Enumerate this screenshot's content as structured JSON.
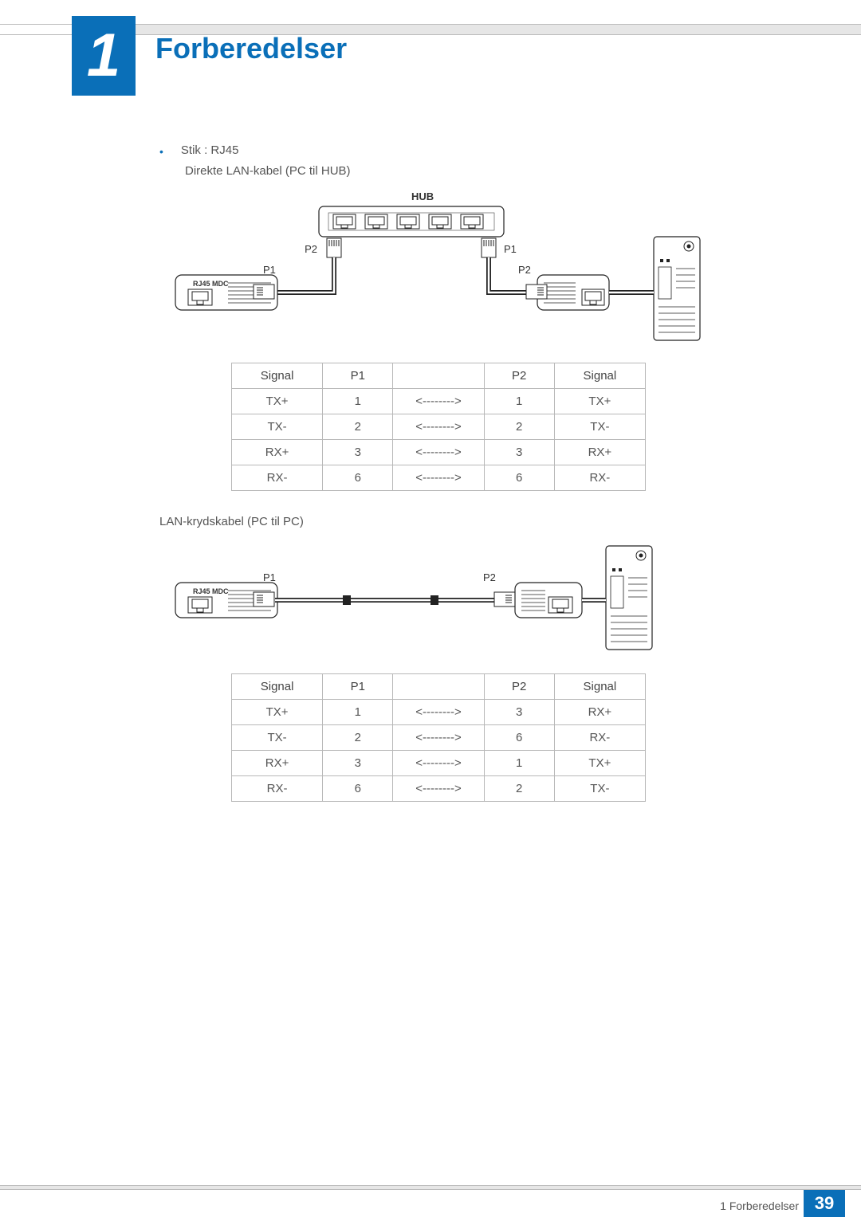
{
  "chapter": {
    "number": "1",
    "title": "Forberedelser"
  },
  "bullet_text": "Stik : RJ45",
  "diagram1_caption": "Direkte LAN-kabel (PC til HUB)",
  "diagram2_caption": "LAN-krydskabel (PC til PC)",
  "labels": {
    "hub": "HUB",
    "rj45": "RJ45 MDC",
    "p1": "P1",
    "p2": "P2"
  },
  "colors": {
    "brand": "#0a6fb8",
    "text": "#555",
    "border": "#b8b8b8",
    "bar_bg": "#e6e6e6",
    "bar_border": "#bcbcbc"
  },
  "table_headers": [
    "Signal",
    "P1",
    "",
    "P2",
    "Signal"
  ],
  "col_widths": [
    "22%",
    "17%",
    "22%",
    "17%",
    "22%"
  ],
  "arrow": "<-------->",
  "table1": {
    "type": "table",
    "rows": [
      [
        "TX+",
        "1",
        "<-------->",
        "1",
        "TX+"
      ],
      [
        "TX-",
        "2",
        "<-------->",
        "2",
        "TX-"
      ],
      [
        "RX+",
        "3",
        "<-------->",
        "3",
        "RX+"
      ],
      [
        "RX-",
        "6",
        "<-------->",
        "6",
        "RX-"
      ]
    ]
  },
  "table2": {
    "type": "table",
    "rows": [
      [
        "TX+",
        "1",
        "<-------->",
        "3",
        "RX+"
      ],
      [
        "TX-",
        "2",
        "<-------->",
        "6",
        "RX-"
      ],
      [
        "RX+",
        "3",
        "<-------->",
        "1",
        "TX+"
      ],
      [
        "RX-",
        "6",
        "<-------->",
        "2",
        "TX-"
      ]
    ]
  },
  "footer": {
    "text": "1 Forberedelser",
    "page": "39"
  }
}
